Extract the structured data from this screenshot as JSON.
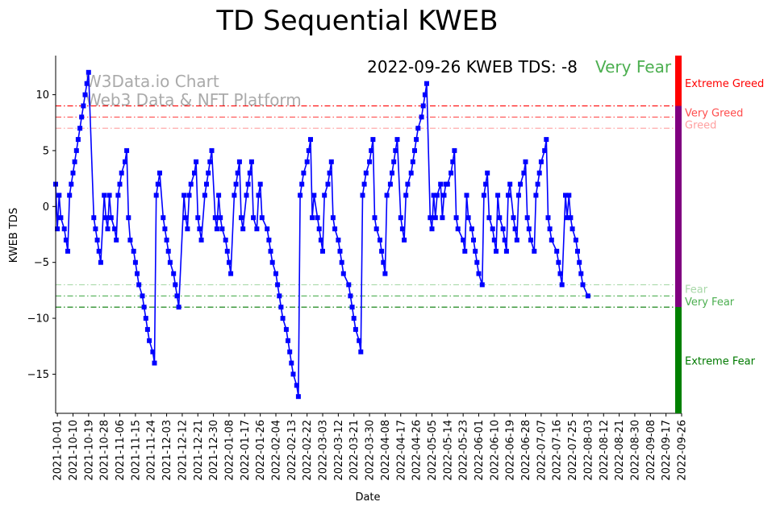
{
  "chart_data": {
    "type": "line",
    "title": "TD Sequential KWEB",
    "xlabel": "Date",
    "ylabel": "KWEB TDS",
    "annotation": "2022-09-26 KWEB TDS: -8",
    "annotation_status": "Very Fear",
    "watermark": [
      "W3Data.io Chart",
      "Web3 Data & NFT Platform"
    ],
    "x_start": "2021-09-30",
    "x_end": "2022-09-26",
    "ylim": [
      -18.5,
      13.5
    ],
    "yticks": [
      10,
      5,
      0,
      -5,
      -10,
      -15
    ],
    "xticks": [
      "2021-10-01",
      "2021-10-10",
      "2021-10-19",
      "2021-10-28",
      "2021-11-06",
      "2021-11-15",
      "2021-11-24",
      "2021-12-03",
      "2021-12-12",
      "2021-12-21",
      "2021-12-30",
      "2022-01-08",
      "2022-01-17",
      "2022-01-26",
      "2022-02-04",
      "2022-02-13",
      "2022-02-22",
      "2022-03-03",
      "2022-03-12",
      "2022-03-21",
      "2022-03-30",
      "2022-04-08",
      "2022-04-17",
      "2022-04-26",
      "2022-05-05",
      "2022-05-14",
      "2022-05-23",
      "2022-06-01",
      "2022-06-10",
      "2022-06-19",
      "2022-06-28",
      "2022-07-07",
      "2022-07-16",
      "2022-07-25",
      "2022-08-03",
      "2022-08-12",
      "2022-08-21",
      "2022-08-30",
      "2022-09-08",
      "2022-09-17",
      "2022-09-26"
    ],
    "thresholds": [
      {
        "label": "Extreme Greed",
        "value": 9,
        "color": "#ff0000"
      },
      {
        "label": "Very Greed",
        "value": 8,
        "color": "#ff4d4d"
      },
      {
        "label": "Greed",
        "value": 7,
        "color": "#ffa0a0"
      },
      {
        "label": "Fear",
        "value": -7,
        "color": "#a8d8a8"
      },
      {
        "label": "Very Fear",
        "value": -8,
        "color": "#4caf50"
      },
      {
        "label": "Extreme Fear",
        "value": -9,
        "color": "#007a00"
      }
    ],
    "band_labels": [
      {
        "label": "Extreme Greed",
        "at": 11,
        "color": "#ff0000"
      },
      {
        "label": "Very Greed",
        "at": 8.4,
        "color": "#ff4d4d"
      },
      {
        "label": "Greed",
        "at": 7.3,
        "color": "#ffa0a0"
      },
      {
        "label": "Fear",
        "at": -7.4,
        "color": "#a8d8a8"
      },
      {
        "label": "Very Fear",
        "at": -8.5,
        "color": "#4caf50"
      },
      {
        "label": "Extreme Fear",
        "at": -13.8,
        "color": "#007a00"
      }
    ],
    "side_bar": [
      {
        "from": 9,
        "to": 13.5,
        "color": "#ff0000"
      },
      {
        "from": -9,
        "to": 9,
        "color": "#800080"
      },
      {
        "from": -18.5,
        "to": -9,
        "color": "#008000"
      }
    ],
    "series": [
      {
        "name": "KWEB TDS",
        "color": "#0000ff",
        "points": [
          [
            0,
            2
          ],
          [
            1,
            -2
          ],
          [
            2,
            1
          ],
          [
            3,
            -1
          ],
          [
            5,
            -2
          ],
          [
            6,
            -3
          ],
          [
            7,
            -4
          ],
          [
            8,
            1
          ],
          [
            9,
            2
          ],
          [
            10,
            3
          ],
          [
            11,
            4
          ],
          [
            12,
            5
          ],
          [
            13,
            6
          ],
          [
            14,
            7
          ],
          [
            15,
            8
          ],
          [
            16,
            9
          ],
          [
            17,
            10
          ],
          [
            18,
            11
          ],
          [
            19,
            12
          ],
          [
            22,
            -1
          ],
          [
            23,
            -2
          ],
          [
            24,
            -3
          ],
          [
            25,
            -4
          ],
          [
            26,
            -5
          ],
          [
            28,
            1
          ],
          [
            29,
            -1
          ],
          [
            30,
            -2
          ],
          [
            31,
            1
          ],
          [
            32,
            -1
          ],
          [
            34,
            -2
          ],
          [
            35,
            -3
          ],
          [
            36,
            1
          ],
          [
            37,
            2
          ],
          [
            38,
            3
          ],
          [
            40,
            4
          ],
          [
            41,
            5
          ],
          [
            42,
            -1
          ],
          [
            43,
            -3
          ],
          [
            45,
            -4
          ],
          [
            46,
            -5
          ],
          [
            47,
            -6
          ],
          [
            48,
            -7
          ],
          [
            50,
            -8
          ],
          [
            51,
            -9
          ],
          [
            52,
            -10
          ],
          [
            53,
            -11
          ],
          [
            54,
            -12
          ],
          [
            56,
            -13
          ],
          [
            57,
            -14
          ],
          [
            58,
            1
          ],
          [
            59,
            2
          ],
          [
            60,
            3
          ],
          [
            62,
            -1
          ],
          [
            63,
            -2
          ],
          [
            64,
            -3
          ],
          [
            65,
            -4
          ],
          [
            66,
            -5
          ],
          [
            68,
            -6
          ],
          [
            69,
            -7
          ],
          [
            70,
            -8
          ],
          [
            71,
            -9
          ],
          [
            74,
            1
          ],
          [
            75,
            -1
          ],
          [
            76,
            -2
          ],
          [
            77,
            1
          ],
          [
            78,
            2
          ],
          [
            80,
            3
          ],
          [
            81,
            4
          ],
          [
            82,
            -1
          ],
          [
            83,
            -2
          ],
          [
            84,
            -3
          ],
          [
            86,
            1
          ],
          [
            87,
            2
          ],
          [
            88,
            3
          ],
          [
            89,
            4
          ],
          [
            90,
            5
          ],
          [
            92,
            -1
          ],
          [
            93,
            -2
          ],
          [
            94,
            1
          ],
          [
            95,
            -1
          ],
          [
            96,
            -2
          ],
          [
            98,
            -3
          ],
          [
            99,
            -4
          ],
          [
            100,
            -5
          ],
          [
            101,
            -6
          ],
          [
            103,
            1
          ],
          [
            104,
            2
          ],
          [
            105,
            3
          ],
          [
            106,
            4
          ],
          [
            107,
            -1
          ],
          [
            108,
            -2
          ],
          [
            110,
            1
          ],
          [
            111,
            2
          ],
          [
            112,
            3
          ],
          [
            113,
            4
          ],
          [
            114,
            -1
          ],
          [
            116,
            -2
          ],
          [
            117,
            1
          ],
          [
            118,
            2
          ],
          [
            119,
            -1
          ],
          [
            122,
            -2
          ],
          [
            123,
            -3
          ],
          [
            124,
            -4
          ],
          [
            125,
            -5
          ],
          [
            127,
            -6
          ],
          [
            128,
            -7
          ],
          [
            129,
            -8
          ],
          [
            130,
            -9
          ],
          [
            131,
            -10
          ],
          [
            133,
            -11
          ],
          [
            134,
            -12
          ],
          [
            135,
            -13
          ],
          [
            136,
            -14
          ],
          [
            137,
            -15
          ],
          [
            139,
            -16
          ],
          [
            140,
            -17
          ],
          [
            141,
            1
          ],
          [
            142,
            2
          ],
          [
            143,
            3
          ],
          [
            145,
            4
          ],
          [
            146,
            5
          ],
          [
            147,
            6
          ],
          [
            148,
            -1
          ],
          [
            149,
            1
          ],
          [
            151,
            -1
          ],
          [
            152,
            -2
          ],
          [
            153,
            -3
          ],
          [
            154,
            -4
          ],
          [
            155,
            1
          ],
          [
            157,
            2
          ],
          [
            158,
            3
          ],
          [
            159,
            4
          ],
          [
            160,
            -1
          ],
          [
            161,
            -2
          ],
          [
            163,
            -3
          ],
          [
            164,
            -4
          ],
          [
            165,
            -5
          ],
          [
            166,
            -6
          ],
          [
            169,
            -7
          ],
          [
            170,
            -8
          ],
          [
            171,
            -9
          ],
          [
            172,
            -10
          ],
          [
            173,
            -11
          ],
          [
            175,
            -12
          ],
          [
            176,
            -13
          ],
          [
            177,
            1
          ],
          [
            178,
            2
          ],
          [
            179,
            3
          ],
          [
            181,
            4
          ],
          [
            182,
            5
          ],
          [
            183,
            6
          ],
          [
            184,
            -1
          ],
          [
            185,
            -2
          ],
          [
            187,
            -3
          ],
          [
            188,
            -4
          ],
          [
            189,
            -5
          ],
          [
            190,
            -6
          ],
          [
            191,
            1
          ],
          [
            193,
            2
          ],
          [
            194,
            3
          ],
          [
            195,
            4
          ],
          [
            196,
            5
          ],
          [
            197,
            6
          ],
          [
            199,
            -1
          ],
          [
            200,
            -2
          ],
          [
            201,
            -3
          ],
          [
            202,
            1
          ],
          [
            203,
            2
          ],
          [
            205,
            3
          ],
          [
            206,
            4
          ],
          [
            207,
            5
          ],
          [
            208,
            6
          ],
          [
            209,
            7
          ],
          [
            211,
            8
          ],
          [
            212,
            9
          ],
          [
            213,
            10
          ],
          [
            214,
            11
          ],
          [
            216,
            -1
          ],
          [
            217,
            -2
          ],
          [
            218,
            1
          ],
          [
            219,
            -1
          ],
          [
            220,
            1
          ],
          [
            222,
            2
          ],
          [
            223,
            -1
          ],
          [
            224,
            1
          ],
          [
            225,
            2
          ],
          [
            226,
            2
          ],
          [
            228,
            3
          ],
          [
            229,
            4
          ],
          [
            230,
            5
          ],
          [
            231,
            -1
          ],
          [
            232,
            -2
          ],
          [
            235,
            -3
          ],
          [
            236,
            -4
          ],
          [
            237,
            1
          ],
          [
            238,
            -1
          ],
          [
            240,
            -2
          ],
          [
            241,
            -3
          ],
          [
            242,
            -4
          ],
          [
            243,
            -5
          ],
          [
            244,
            -6
          ],
          [
            246,
            -7
          ],
          [
            247,
            1
          ],
          [
            248,
            2
          ],
          [
            249,
            3
          ],
          [
            250,
            -1
          ],
          [
            252,
            -2
          ],
          [
            253,
            -3
          ],
          [
            254,
            -4
          ],
          [
            255,
            1
          ],
          [
            256,
            -1
          ],
          [
            258,
            -2
          ],
          [
            259,
            -3
          ],
          [
            260,
            -4
          ],
          [
            261,
            1
          ],
          [
            262,
            2
          ],
          [
            264,
            -1
          ],
          [
            265,
            -2
          ],
          [
            266,
            -3
          ],
          [
            267,
            1
          ],
          [
            268,
            2
          ],
          [
            270,
            3
          ],
          [
            271,
            4
          ],
          [
            272,
            -1
          ],
          [
            273,
            -2
          ],
          [
            274,
            -3
          ],
          [
            276,
            -4
          ],
          [
            277,
            1
          ],
          [
            278,
            2
          ],
          [
            279,
            3
          ],
          [
            280,
            4
          ],
          [
            282,
            5
          ],
          [
            283,
            6
          ],
          [
            284,
            -1
          ],
          [
            285,
            -2
          ],
          [
            286,
            -3
          ],
          [
            289,
            -4
          ],
          [
            290,
            -5
          ],
          [
            291,
            -6
          ],
          [
            292,
            -7
          ],
          [
            294,
            1
          ],
          [
            295,
            -1
          ],
          [
            296,
            1
          ],
          [
            297,
            -1
          ],
          [
            298,
            -2
          ],
          [
            300,
            -3
          ],
          [
            301,
            -4
          ],
          [
            302,
            -5
          ],
          [
            303,
            -6
          ],
          [
            304,
            -7
          ],
          [
            307,
            -8
          ]
        ]
      }
    ]
  }
}
